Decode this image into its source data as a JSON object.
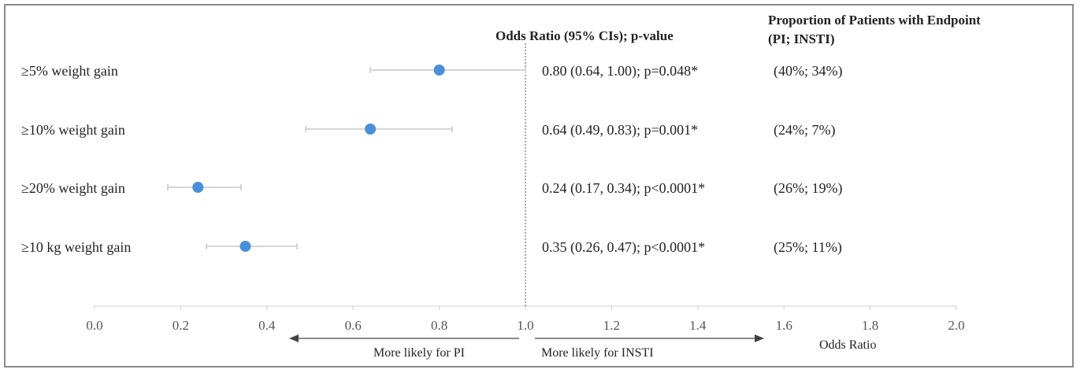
{
  "chart_data": {
    "type": "forest",
    "title": "",
    "xlabel": "Odds Ratio",
    "xlim": [
      0.0,
      2.0
    ],
    "xticks": [
      "0.0",
      "0.2",
      "0.4",
      "0.6",
      "0.8",
      "1.0",
      "1.2",
      "1.4",
      "1.6",
      "1.8",
      "2.0"
    ],
    "tick_values": [
      0.0,
      0.2,
      0.4,
      0.6,
      0.8,
      1.0,
      1.2,
      1.4,
      1.6,
      1.8,
      2.0
    ],
    "reference_line": 1.0,
    "column_headers": {
      "or_ci": "Odds Ratio (95% CIs); p-value",
      "proportion_line1": "Proportion of Patients with Endpoint",
      "proportion_line2": "(PI; INSTI)"
    },
    "direction_labels": {
      "left": "More likely for PI",
      "right": "More likely for INSTI"
    },
    "rows": [
      {
        "label": "≥5% weight gain",
        "or": 0.8,
        "lo": 0.64,
        "hi": 1.0,
        "stat": "0.80 (0.64, 1.00); p=0.048*",
        "prop": "(40%; 34%)"
      },
      {
        "label": "≥10% weight gain",
        "or": 0.64,
        "lo": 0.49,
        "hi": 0.83,
        "stat": "0.64 (0.49, 0.83); p=0.001*",
        "prop": "(24%; 7%)"
      },
      {
        "label": "≥20% weight gain",
        "or": 0.24,
        "lo": 0.17,
        "hi": 0.34,
        "stat": "0.24 (0.17, 0.34); p<0.0001*",
        "prop": "(26%; 19%)"
      },
      {
        "label": "≥10 kg weight gain",
        "or": 0.35,
        "lo": 0.26,
        "hi": 0.47,
        "stat": "0.35 (0.26, 0.47); p<0.0001*",
        "prop": "(25%; 11%)"
      }
    ],
    "point_color": "#4a90d9",
    "ci_color": "#c8c8c8"
  }
}
